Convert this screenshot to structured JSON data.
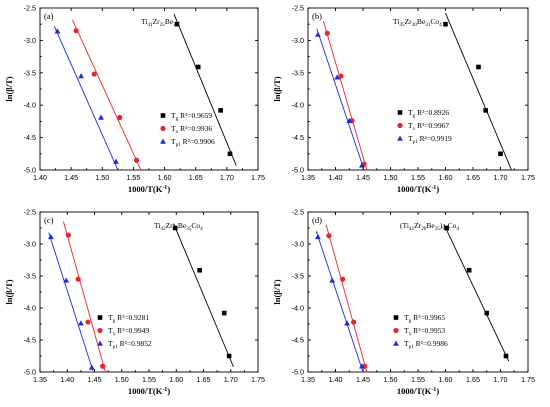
{
  "chart_data": [
    {
      "type": "scatter",
      "panel_label": "(a)",
      "title": "Ti",
      "title_sub": [
        "41",
        "Zr",
        "25",
        "Be",
        "34"
      ],
      "xlabel": "1000/T(K",
      "xlabel_sup": "-1",
      "xlabel_end": ")",
      "ylabel": "ln(β/T)",
      "xlim": [
        1.4,
        1.75
      ],
      "ylim": [
        -5.0,
        -2.5
      ],
      "xticks": [
        "1.40",
        "1.45",
        "1.50",
        "1.55",
        "1.60",
        "1.65",
        "1.70",
        "1.75"
      ],
      "yticks": [
        "-2.5",
        "-3.0",
        "-3.5",
        "-4.0",
        "-4.5",
        "-5.0"
      ],
      "legend_position": "bottom-right",
      "series": [
        {
          "name": "T",
          "sub": "g",
          "r2": "R²=0.9659",
          "color": "#000000",
          "marker": "square",
          "x": [
            1.62,
            1.654,
            1.69,
            1.705
          ],
          "y": [
            -2.75,
            -3.41,
            -4.08,
            -4.75
          ],
          "fit": [
            [
              1.615,
              -2.59
            ],
            [
              1.715,
              -4.93
            ]
          ]
        },
        {
          "name": "T",
          "sub": "x",
          "r2": "R²=0.9936",
          "color": "#e8262a",
          "marker": "circle",
          "x": [
            1.458,
            1.487,
            1.528,
            1.555
          ],
          "y": [
            -2.85,
            -3.52,
            -4.19,
            -4.85
          ],
          "fit": [
            [
              1.452,
              -2.68
            ],
            [
              1.562,
              -5.0
            ]
          ]
        },
        {
          "name": "T",
          "sub": "p1",
          "r2": "R²=0.9906",
          "color": "#1c2bd8",
          "marker": "triangle",
          "x": [
            1.428,
            1.466,
            1.498,
            1.522
          ],
          "y": [
            -2.86,
            -3.55,
            -4.19,
            -4.87
          ],
          "fit": [
            [
              1.423,
              -2.78
            ],
            [
              1.525,
              -5.0
            ]
          ]
        }
      ]
    },
    {
      "type": "scatter",
      "panel_label": "(b)",
      "title": "Ti",
      "title_sub": [
        "45",
        "Zr",
        "20",
        "Be",
        "31",
        "Co",
        "4"
      ],
      "xlabel": "1000/T(K",
      "xlabel_sup": "-1",
      "xlabel_end": ")",
      "ylabel": "ln(β/T)",
      "xlim": [
        1.35,
        1.75
      ],
      "ylim": [
        -5.0,
        -2.5
      ],
      "xticks": [
        "1.35",
        "1.40",
        "1.45",
        "1.50",
        "1.55",
        "1.60",
        "1.65",
        "1.70",
        "1.75"
      ],
      "yticks": [
        "-2.5",
        "-3.0",
        "-3.5",
        "-4.0",
        "-4.5",
        "-5.0"
      ],
      "legend_position": "bottom-right",
      "series": [
        {
          "name": "T",
          "sub": "g",
          "r2": "R²=0.8926",
          "color": "#000000",
          "marker": "square",
          "x": [
            1.6,
            1.66,
            1.673,
            1.7
          ],
          "y": [
            -2.75,
            -3.41,
            -4.08,
            -4.75
          ],
          "fit": [
            [
              1.6,
              -2.58
            ],
            [
              1.72,
              -5.0
            ]
          ]
        },
        {
          "name": "T",
          "sub": "x",
          "r2": "R²=0.9967",
          "color": "#e8262a",
          "marker": "circle",
          "x": [
            1.385,
            1.41,
            1.43,
            1.452
          ],
          "y": [
            -2.89,
            -3.55,
            -4.24,
            -4.91
          ],
          "fit": [
            [
              1.378,
              -2.7
            ],
            [
              1.457,
              -5.0
            ]
          ]
        },
        {
          "name": "T",
          "sub": "p1",
          "r2": "R²=0.9919",
          "color": "#1c2bd8",
          "marker": "triangle",
          "x": [
            1.368,
            1.403,
            1.425,
            1.448
          ],
          "y": [
            -2.91,
            -3.57,
            -4.24,
            -4.93
          ],
          "fit": [
            [
              1.366,
              -2.82
            ],
            [
              1.452,
              -5.0
            ]
          ]
        }
      ]
    },
    {
      "type": "scatter",
      "panel_label": "(c)",
      "title": "Ti",
      "title_sub": [
        "43",
        "Zr",
        "18",
        "Be",
        "35",
        "Co",
        "4"
      ],
      "xlabel": "1000/T(K",
      "xlabel_sup": "-1",
      "xlabel_end": ")",
      "ylabel": "ln(β/T)",
      "xlim": [
        1.35,
        1.75
      ],
      "ylim": [
        -5.0,
        -2.5
      ],
      "xticks": [
        "1.35",
        "1.40",
        "1.45",
        "1.50",
        "1.55",
        "1.60",
        "1.65",
        "1.70",
        "1.75"
      ],
      "yticks": [
        "-2.5",
        "-3.0",
        "-3.5",
        "-4.0",
        "-4.5",
        "-5.0"
      ],
      "legend_position": "bottom-center",
      "series": [
        {
          "name": "T",
          "sub": "g",
          "r2": "R²=0.9281",
          "color": "#000000",
          "marker": "square",
          "x": [
            1.598,
            1.643,
            1.688,
            1.697
          ],
          "y": [
            -2.75,
            -3.41,
            -4.08,
            -4.75
          ],
          "fit": [
            [
              1.595,
              -2.68
            ],
            [
              1.705,
              -4.92
            ]
          ]
        },
        {
          "name": "T",
          "sub": "x",
          "r2": "R²=0.9949",
          "color": "#e8262a",
          "marker": "circle",
          "x": [
            1.402,
            1.42,
            1.438,
            1.465
          ],
          "y": [
            -2.86,
            -3.55,
            -4.22,
            -4.91
          ],
          "fit": [
            [
              1.393,
              -2.65
            ],
            [
              1.47,
              -5.0
            ]
          ]
        },
        {
          "name": "T",
          "sub": "p1",
          "r2": "R²=0.9852",
          "color": "#1c2bd8",
          "marker": "triangle",
          "x": [
            1.37,
            1.398,
            1.425,
            1.445
          ],
          "y": [
            -2.89,
            -3.57,
            -4.24,
            -4.93
          ],
          "fit": [
            [
              1.366,
              -2.82
            ],
            [
              1.447,
              -4.98
            ]
          ]
        }
      ]
    },
    {
      "type": "scatter",
      "panel_label": "(d)",
      "title": "(Ti",
      "title_sub": [
        "45",
        "Zr",
        "20",
        "Be",
        "35",
        ")",
        "96",
        "Co",
        "4"
      ],
      "xlabel": "1000/T(K",
      "xlabel_sup": "-1",
      "xlabel_end": ")",
      "ylabel": "ln(β/T)",
      "xlim": [
        1.35,
        1.75
      ],
      "ylim": [
        -5.0,
        -2.5
      ],
      "xticks": [
        "1.35",
        "1.40",
        "1.45",
        "1.50",
        "1.55",
        "1.60",
        "1.65",
        "1.70",
        "1.75"
      ],
      "yticks": [
        "-2.5",
        "-3.0",
        "-3.5",
        "-4.0",
        "-4.5",
        "-5.0"
      ],
      "legend_position": "bottom-center",
      "series": [
        {
          "name": "T",
          "sub": "g",
          "r2": "R²=0.9965",
          "color": "#000000",
          "marker": "square",
          "x": [
            1.602,
            1.643,
            1.675,
            1.71
          ],
          "y": [
            -2.75,
            -3.41,
            -4.08,
            -4.75
          ],
          "fit": [
            [
              1.597,
              -2.69
            ],
            [
              1.715,
              -4.83
            ]
          ]
        },
        {
          "name": "T",
          "sub": "x",
          "r2": "R²=0.9953",
          "color": "#e8262a",
          "marker": "circle",
          "x": [
            1.388,
            1.413,
            1.433,
            1.453
          ],
          "y": [
            -2.87,
            -3.55,
            -4.22,
            -4.91
          ],
          "fit": [
            [
              1.383,
              -2.7
            ],
            [
              1.457,
              -5.0
            ]
          ]
        },
        {
          "name": "T",
          "sub": "p1",
          "r2": "R²=0.9986",
          "color": "#1c2bd8",
          "marker": "triangle",
          "x": [
            1.368,
            1.394,
            1.421,
            1.448
          ],
          "y": [
            -2.89,
            -3.57,
            -4.24,
            -4.91
          ],
          "fit": [
            [
              1.365,
              -2.8
            ],
            [
              1.45,
              -5.0
            ]
          ]
        }
      ]
    }
  ]
}
